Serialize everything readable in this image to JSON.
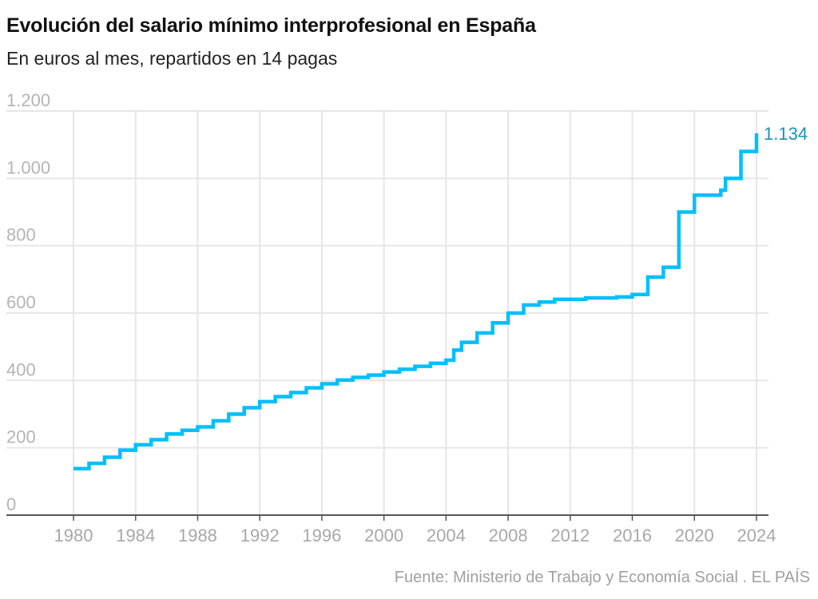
{
  "title": "Evolución del salario mínimo interprofesional en España",
  "subtitle": "En euros al mes, repartidos en 14 pagas",
  "source": "Fuente: Ministerio de Trabajo y Economía Social . EL PAÍS",
  "colors": {
    "line": "#00bfff",
    "label": "#1a8fc2",
    "grid": "#e6e6e6",
    "axis": "#555555"
  },
  "chart_data": {
    "type": "line",
    "step": true,
    "title": "Evolución del salario mínimo interprofesional en España",
    "subtitle": "En euros al mes, repartidos en 14 pagas",
    "xlabel": "",
    "ylabel": "",
    "xlim": [
      1980,
      2024
    ],
    "ylim": [
      0,
      1200
    ],
    "grid": true,
    "y_ticks": [
      0,
      200,
      400,
      600,
      800,
      1000,
      1200
    ],
    "y_tick_labels": [
      "0",
      "200",
      "400",
      "600",
      "800",
      "1.000",
      "1.200"
    ],
    "x_ticks": [
      1980,
      1984,
      1988,
      1992,
      1996,
      2000,
      2004,
      2008,
      2012,
      2016,
      2020,
      2024
    ],
    "x_tick_labels": [
      "1980",
      "1984",
      "1988",
      "1992",
      "1996",
      "2000",
      "2004",
      "2008",
      "2012",
      "2016",
      "2020",
      "2024"
    ],
    "end_label": "1.134",
    "series": [
      {
        "x": [
          1980,
          1981,
          1982,
          1983,
          1984,
          1985,
          1986,
          1987,
          1988,
          1989,
          1990,
          1991,
          1992,
          1993,
          1994,
          1995,
          1996,
          1997,
          1998,
          1999,
          2000,
          2001,
          2002,
          2003,
          2004,
          2004.5,
          2005,
          2006,
          2007,
          2008,
          2009,
          2010,
          2011,
          2012,
          2013,
          2014,
          2015,
          2016,
          2017,
          2018,
          2019,
          2020,
          2021,
          2021.7,
          2022,
          2023,
          2024
        ],
        "values": [
          138,
          154,
          172,
          193,
          209,
          224,
          241,
          252,
          262,
          280,
          300,
          319,
          337,
          352,
          364,
          378,
          390,
          401,
          409,
          416,
          425,
          433,
          442,
          451,
          460,
          490,
          513,
          541,
          571,
          600,
          624,
          633,
          641,
          641,
          645,
          645,
          648,
          655,
          707,
          736,
          900,
          950,
          950,
          965,
          1000,
          1080,
          1134
        ]
      }
    ]
  }
}
